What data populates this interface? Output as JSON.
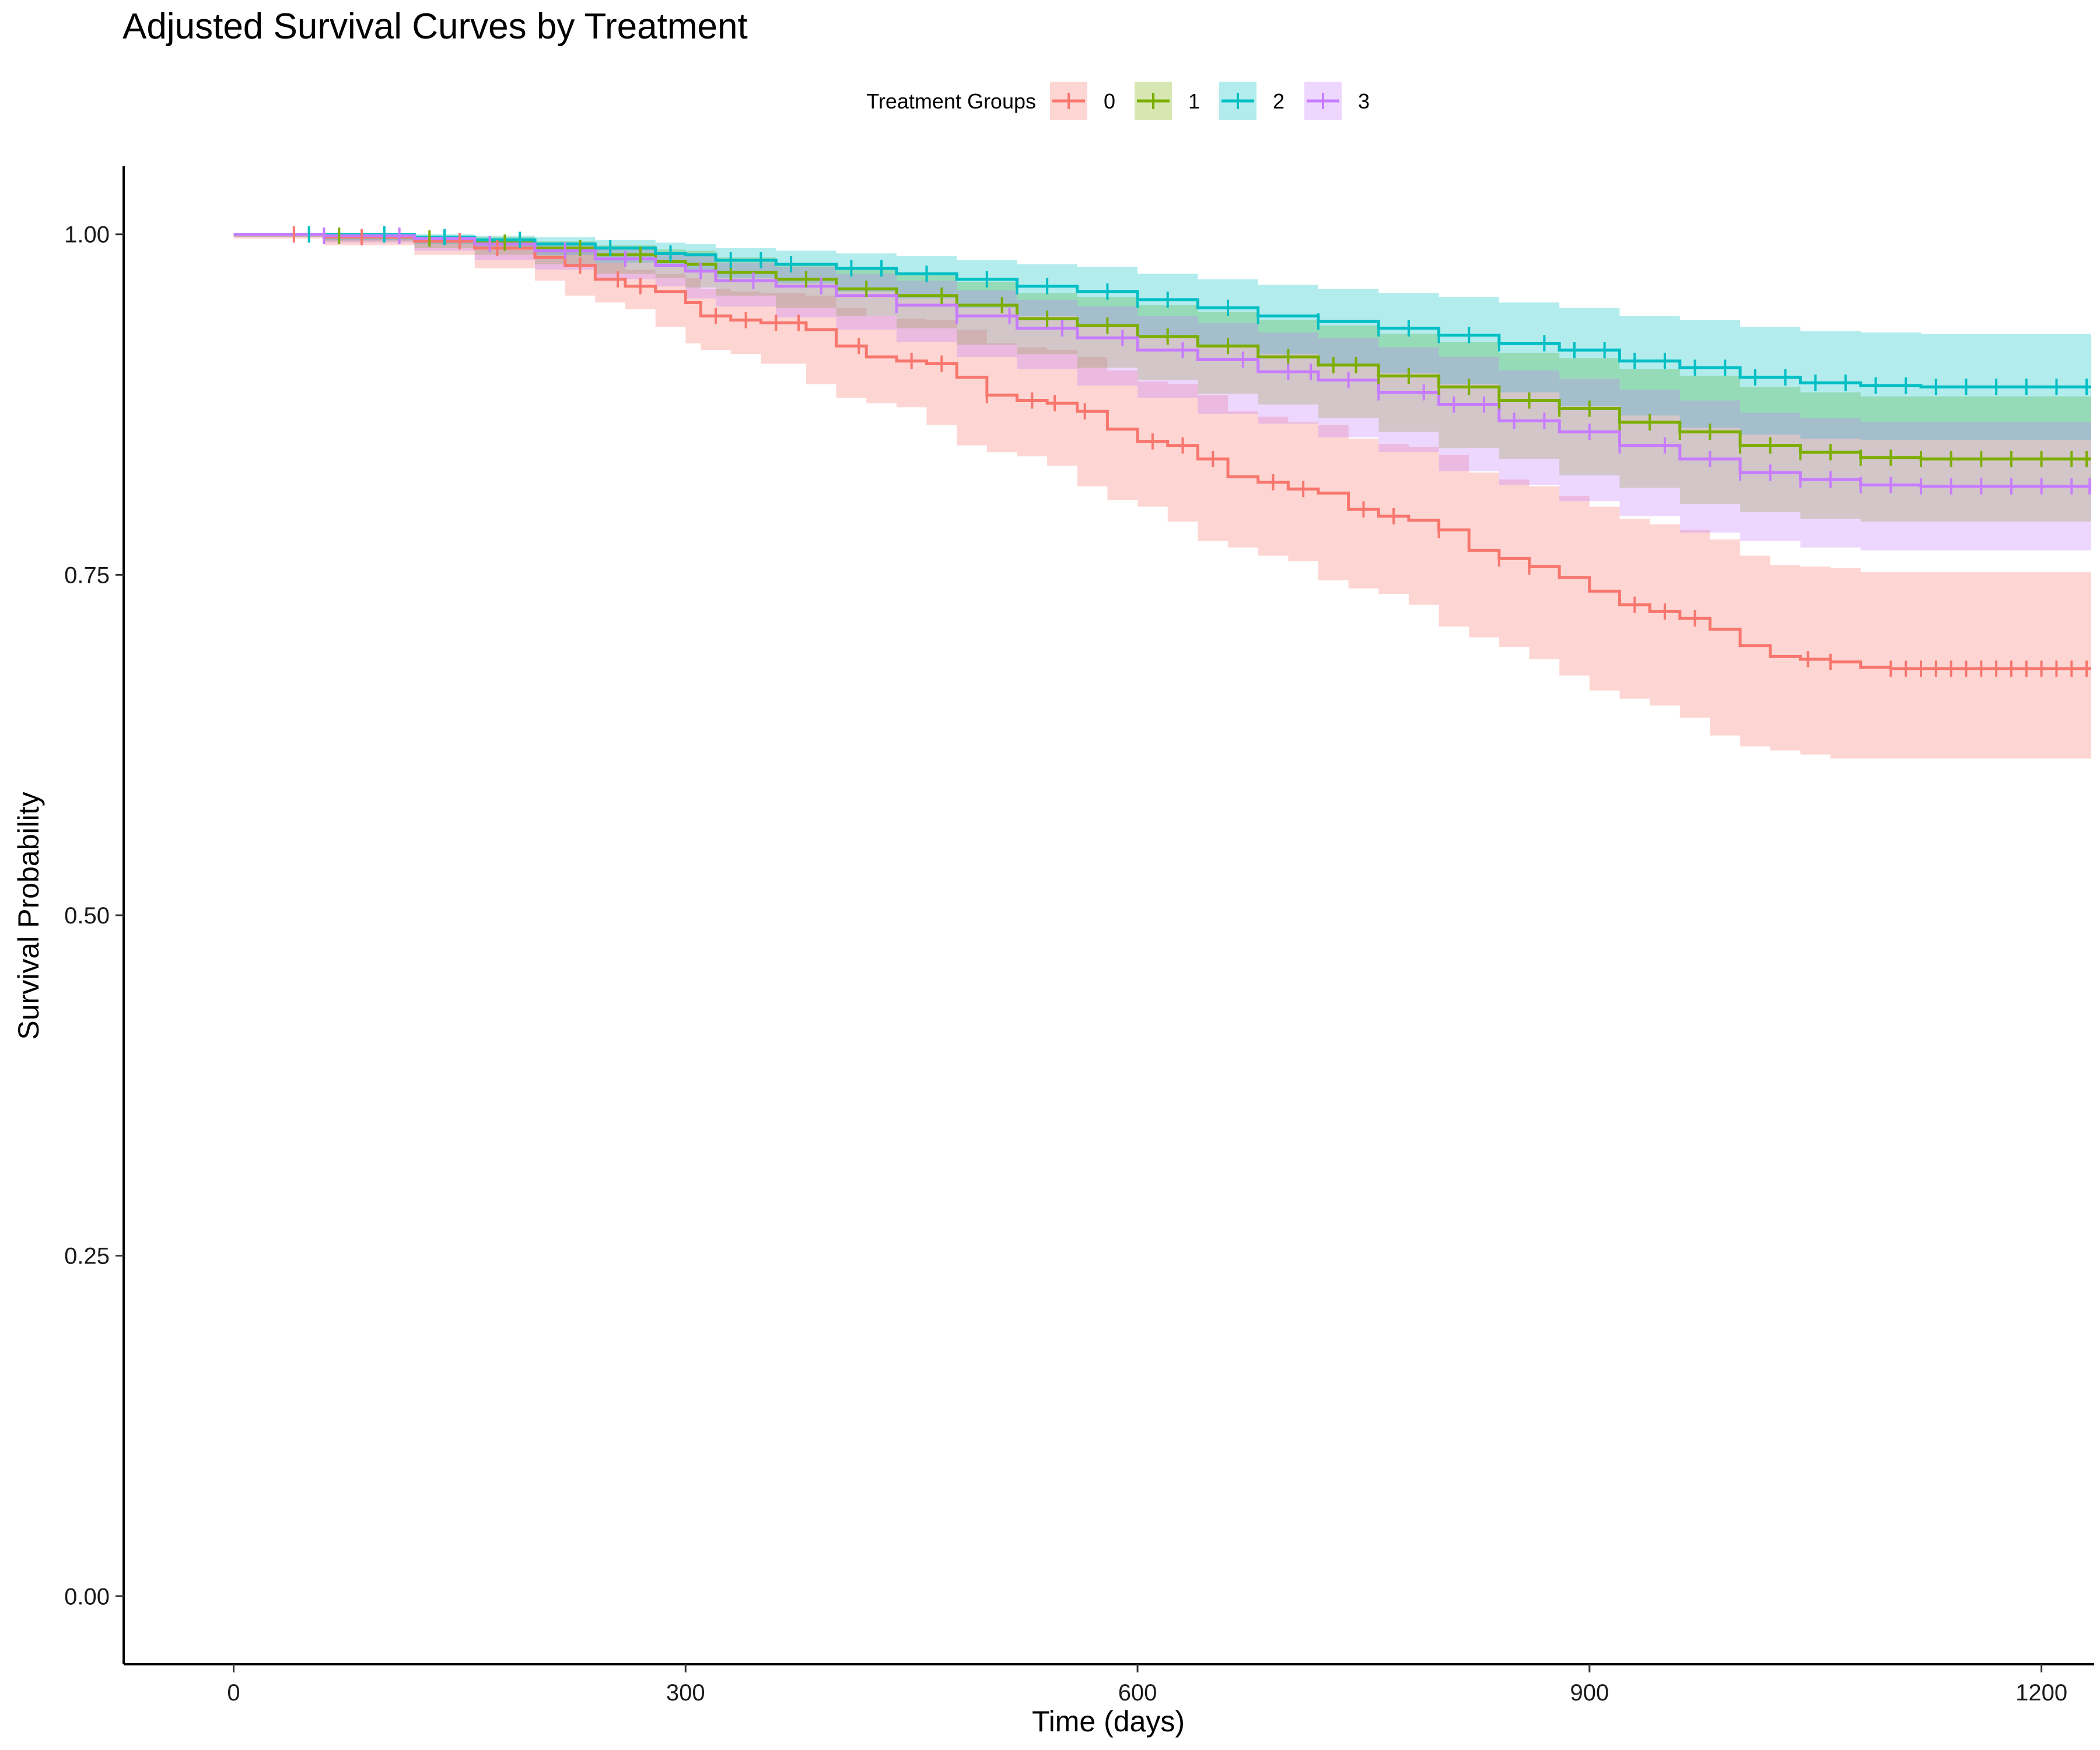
{
  "chart_data": {
    "type": "line",
    "title": "Adjusted Survival Curves by Treatment",
    "xlabel": "Time (days)",
    "ylabel": "Survival Probability",
    "xlim": [
      -73,
      1235
    ],
    "ylim": [
      -0.05,
      1.05
    ],
    "x_ticks": [
      0,
      300,
      600,
      900,
      1200
    ],
    "x_tick_labels": [
      "0",
      "300",
      "600",
      "900",
      "1200"
    ],
    "y_ticks": [
      0,
      0.25,
      0.5,
      0.75,
      1.0
    ],
    "y_tick_labels": [
      "0.00",
      "0.25",
      "0.50",
      "0.75",
      "1.00"
    ],
    "grid": false,
    "legend": {
      "title": "Treatment Groups",
      "position": "top"
    },
    "series": [
      {
        "name": "0",
        "color": "#F8766D",
        "band_color": "#F8766D",
        "x": [
          0,
          60,
          120,
          160,
          200,
          220,
          240,
          260,
          280,
          300,
          310,
          330,
          350,
          380,
          400,
          420,
          440,
          460,
          480,
          500,
          520,
          540,
          560,
          580,
          600,
          620,
          640,
          660,
          680,
          700,
          720,
          740,
          760,
          780,
          800,
          820,
          840,
          860,
          880,
          900,
          920,
          940,
          960,
          980,
          1000,
          1020,
          1040,
          1060,
          1080,
          1100,
          1150,
          1233
        ],
        "y": [
          1.0,
          0.998,
          0.995,
          0.99,
          0.983,
          0.977,
          0.967,
          0.962,
          0.958,
          0.95,
          0.94,
          0.937,
          0.935,
          0.93,
          0.918,
          0.91,
          0.907,
          0.905,
          0.895,
          0.882,
          0.878,
          0.876,
          0.87,
          0.857,
          0.848,
          0.845,
          0.835,
          0.822,
          0.818,
          0.813,
          0.81,
          0.798,
          0.793,
          0.79,
          0.783,
          0.768,
          0.762,
          0.756,
          0.748,
          0.738,
          0.728,
          0.723,
          0.718,
          0.71,
          0.698,
          0.69,
          0.688,
          0.686,
          0.682,
          0.681,
          0.681,
          0.681
        ],
        "lower": [
          1.0,
          0.997,
          0.992,
          0.985,
          0.975,
          0.966,
          0.955,
          0.95,
          0.945,
          0.932,
          0.92,
          0.915,
          0.912,
          0.905,
          0.89,
          0.88,
          0.876,
          0.873,
          0.86,
          0.845,
          0.84,
          0.837,
          0.83,
          0.815,
          0.805,
          0.8,
          0.789,
          0.775,
          0.77,
          0.764,
          0.76,
          0.746,
          0.74,
          0.736,
          0.728,
          0.712,
          0.704,
          0.697,
          0.688,
          0.676,
          0.665,
          0.659,
          0.654,
          0.645,
          0.632,
          0.624,
          0.621,
          0.618,
          0.615,
          0.615,
          0.615,
          0.615
        ],
        "upper": [
          1.0,
          0.999,
          0.998,
          0.995,
          0.99,
          0.987,
          0.979,
          0.974,
          0.971,
          0.968,
          0.96,
          0.958,
          0.957,
          0.955,
          0.946,
          0.94,
          0.938,
          0.937,
          0.93,
          0.92,
          0.917,
          0.915,
          0.91,
          0.9,
          0.892,
          0.89,
          0.882,
          0.87,
          0.866,
          0.862,
          0.86,
          0.85,
          0.846,
          0.844,
          0.838,
          0.825,
          0.82,
          0.815,
          0.808,
          0.8,
          0.791,
          0.787,
          0.783,
          0.776,
          0.764,
          0.757,
          0.756,
          0.755,
          0.752,
          0.752,
          0.752,
          0.752
        ],
        "censor_x": [
          40,
          85,
          150,
          175,
          230,
          255,
          270,
          320,
          340,
          360,
          375,
          415,
          450,
          470,
          500,
          530,
          545,
          565,
          610,
          630,
          650,
          690,
          710,
          750,
          770,
          800,
          840,
          860,
          930,
          950,
          970,
          1045,
          1060,
          1100,
          1110,
          1120,
          1130,
          1140,
          1150,
          1160,
          1170,
          1180,
          1190,
          1200,
          1210,
          1220,
          1230
        ]
      },
      {
        "name": "1",
        "color": "#7CAE00",
        "band_color": "#7CAE00",
        "x": [
          0,
          60,
          120,
          160,
          200,
          240,
          280,
          300,
          320,
          360,
          400,
          440,
          480,
          520,
          560,
          600,
          640,
          680,
          720,
          760,
          800,
          840,
          880,
          920,
          960,
          1000,
          1040,
          1080,
          1120,
          1233
        ],
        "y": [
          1.0,
          0.999,
          0.997,
          0.994,
          0.99,
          0.985,
          0.98,
          0.978,
          0.972,
          0.967,
          0.96,
          0.955,
          0.948,
          0.938,
          0.933,
          0.925,
          0.918,
          0.91,
          0.904,
          0.896,
          0.888,
          0.878,
          0.872,
          0.862,
          0.855,
          0.845,
          0.84,
          0.836,
          0.835,
          0.835
        ],
        "lower": [
          1.0,
          0.998,
          0.995,
          0.99,
          0.985,
          0.978,
          0.971,
          0.968,
          0.961,
          0.955,
          0.946,
          0.94,
          0.931,
          0.919,
          0.912,
          0.902,
          0.893,
          0.883,
          0.875,
          0.865,
          0.855,
          0.843,
          0.835,
          0.823,
          0.814,
          0.802,
          0.796,
          0.791,
          0.789,
          0.789
        ],
        "upper": [
          1.0,
          1.0,
          0.999,
          0.998,
          0.995,
          0.992,
          0.989,
          0.988,
          0.983,
          0.979,
          0.974,
          0.97,
          0.965,
          0.957,
          0.954,
          0.948,
          0.943,
          0.937,
          0.933,
          0.927,
          0.921,
          0.913,
          0.909,
          0.901,
          0.896,
          0.888,
          0.884,
          0.881,
          0.881,
          0.881
        ],
        "censor_x": [
          70,
          130,
          180,
          230,
          270,
          330,
          380,
          420,
          470,
          510,
          540,
          580,
          620,
          660,
          700,
          730,
          745,
          760,
          780,
          800,
          820,
          840,
          860,
          880,
          900,
          920,
          940,
          960,
          980,
          1000,
          1020,
          1040,
          1060,
          1080,
          1100,
          1120,
          1140,
          1160,
          1180,
          1200,
          1220,
          1230
        ]
      },
      {
        "name": "2",
        "color": "#00BFC4",
        "band_color": "#00BFC4",
        "x": [
          0,
          60,
          120,
          160,
          200,
          240,
          280,
          300,
          320,
          360,
          400,
          440,
          480,
          520,
          560,
          600,
          640,
          680,
          720,
          760,
          800,
          840,
          880,
          920,
          960,
          1000,
          1040,
          1080,
          1120,
          1233
        ],
        "y": [
          1.0,
          1.0,
          0.998,
          0.996,
          0.993,
          0.99,
          0.986,
          0.985,
          0.981,
          0.978,
          0.975,
          0.971,
          0.967,
          0.962,
          0.958,
          0.952,
          0.946,
          0.94,
          0.936,
          0.931,
          0.926,
          0.92,
          0.915,
          0.907,
          0.902,
          0.895,
          0.891,
          0.889,
          0.888,
          0.888
        ],
        "lower": [
          1.0,
          0.999,
          0.996,
          0.993,
          0.989,
          0.985,
          0.979,
          0.977,
          0.972,
          0.968,
          0.964,
          0.958,
          0.953,
          0.946,
          0.94,
          0.933,
          0.925,
          0.917,
          0.912,
          0.905,
          0.898,
          0.89,
          0.884,
          0.874,
          0.867,
          0.858,
          0.853,
          0.85,
          0.849,
          0.849
        ],
        "upper": [
          1.0,
          1.0,
          1.0,
          0.999,
          0.998,
          0.996,
          0.994,
          0.993,
          0.99,
          0.988,
          0.986,
          0.984,
          0.981,
          0.978,
          0.976,
          0.971,
          0.967,
          0.963,
          0.96,
          0.957,
          0.954,
          0.95,
          0.946,
          0.94,
          0.937,
          0.932,
          0.929,
          0.928,
          0.927,
          0.927
        ],
        "censor_x": [
          50,
          100,
          140,
          190,
          250,
          290,
          330,
          350,
          370,
          410,
          430,
          460,
          500,
          520,
          540,
          580,
          600,
          620,
          660,
          680,
          720,
          760,
          780,
          800,
          820,
          840,
          870,
          890,
          910,
          930,
          950,
          970,
          990,
          1010,
          1030,
          1050,
          1070,
          1090,
          1110,
          1130,
          1150,
          1170,
          1190,
          1210,
          1230
        ]
      },
      {
        "name": "3",
        "color": "#C77CFF",
        "band_color": "#C77CFF",
        "x": [
          0,
          60,
          120,
          160,
          200,
          240,
          280,
          300,
          320,
          360,
          400,
          440,
          480,
          520,
          560,
          600,
          640,
          680,
          720,
          760,
          800,
          840,
          880,
          920,
          960,
          1000,
          1040,
          1080,
          1120,
          1233
        ],
        "y": [
          1.0,
          0.999,
          0.997,
          0.993,
          0.988,
          0.982,
          0.977,
          0.973,
          0.966,
          0.962,
          0.955,
          0.948,
          0.94,
          0.931,
          0.924,
          0.915,
          0.908,
          0.899,
          0.893,
          0.884,
          0.875,
          0.863,
          0.855,
          0.845,
          0.835,
          0.825,
          0.82,
          0.816,
          0.815,
          0.815
        ],
        "lower": [
          1.0,
          0.998,
          0.994,
          0.988,
          0.981,
          0.974,
          0.967,
          0.962,
          0.953,
          0.947,
          0.939,
          0.93,
          0.921,
          0.91,
          0.901,
          0.889,
          0.88,
          0.868,
          0.861,
          0.851,
          0.84,
          0.826,
          0.816,
          0.804,
          0.793,
          0.781,
          0.775,
          0.77,
          0.768,
          0.768
        ],
        "upper": [
          1.0,
          1.0,
          0.999,
          0.997,
          0.994,
          0.99,
          0.987,
          0.984,
          0.979,
          0.976,
          0.971,
          0.966,
          0.959,
          0.952,
          0.947,
          0.94,
          0.935,
          0.928,
          0.924,
          0.917,
          0.91,
          0.9,
          0.894,
          0.886,
          0.878,
          0.869,
          0.865,
          0.862,
          0.862,
          0.862
        ],
        "censor_x": [
          60,
          110,
          170,
          220,
          260,
          310,
          345,
          390,
          440,
          480,
          515,
          550,
          590,
          630,
          670,
          700,
          715,
          740,
          760,
          790,
          810,
          830,
          850,
          870,
          900,
          920,
          950,
          980,
          1000,
          1020,
          1040,
          1060,
          1080,
          1100,
          1120,
          1140,
          1160,
          1180,
          1200,
          1220,
          1232
        ]
      }
    ]
  }
}
